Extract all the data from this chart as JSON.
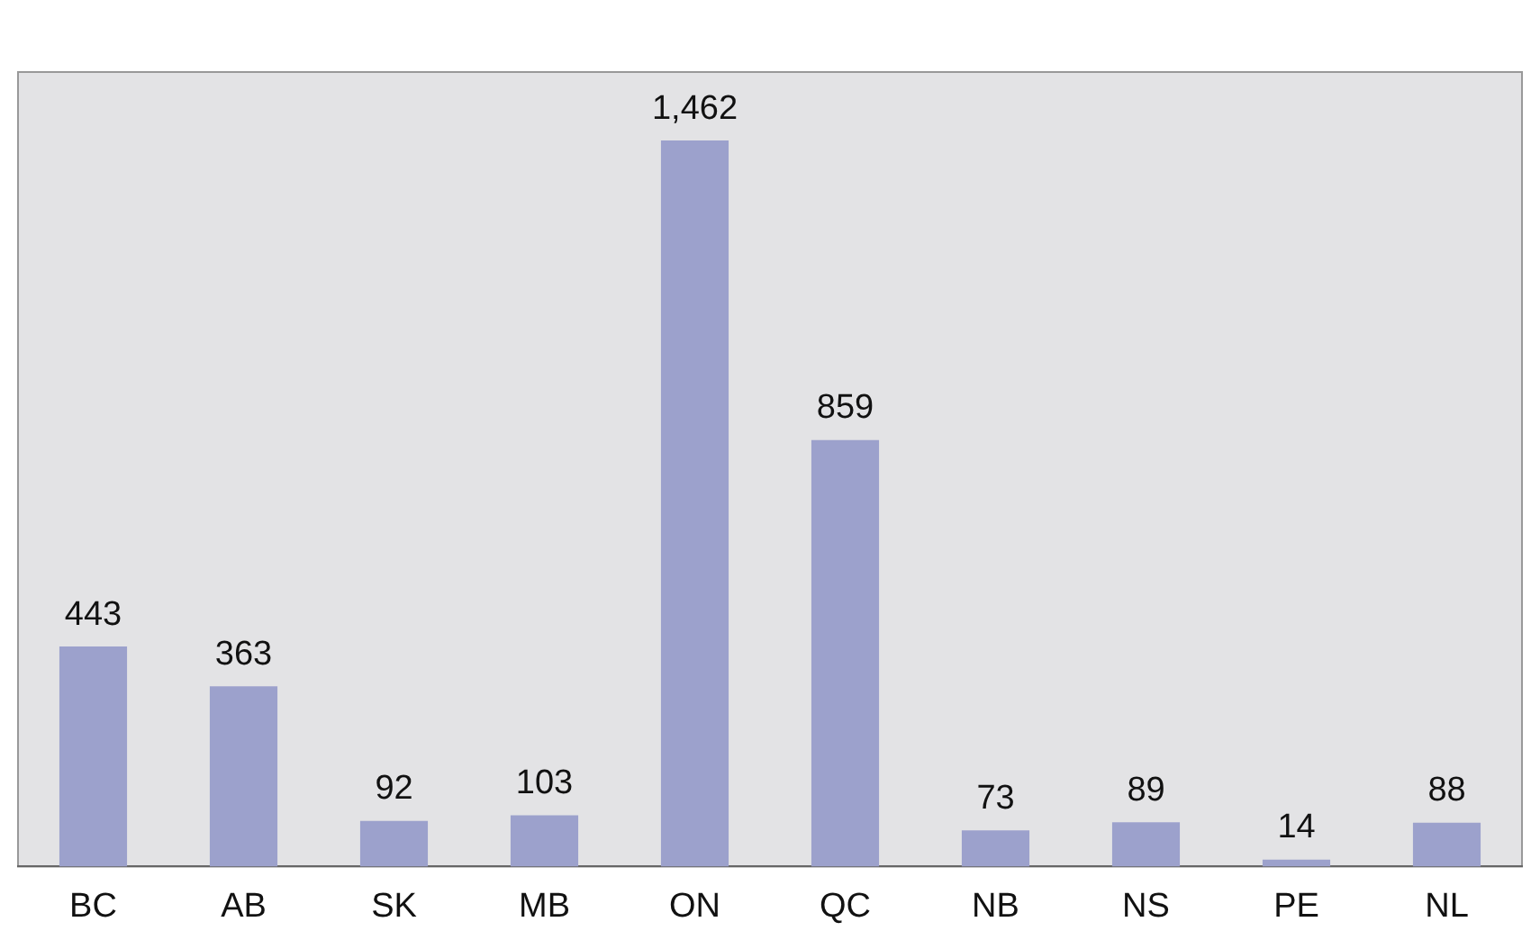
{
  "chart_data": {
    "type": "bar",
    "categories": [
      "BC",
      "AB",
      "SK",
      "MB",
      "ON",
      "QC",
      "NB",
      "NS",
      "PE",
      "NL"
    ],
    "values": [
      443,
      363,
      92,
      103,
      1462,
      859,
      73,
      89,
      14,
      88
    ],
    "value_labels": [
      "443",
      "363",
      "92",
      "103",
      "1,462",
      "859",
      "73",
      "89",
      "14",
      "88"
    ],
    "color": "#9ca1cc",
    "tick_labels": "x",
    "grid": false,
    "legend": false
  }
}
